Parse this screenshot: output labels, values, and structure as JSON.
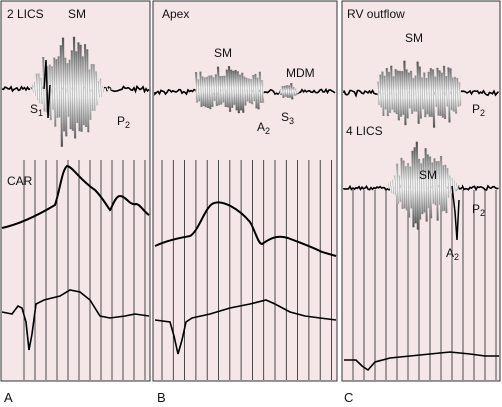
{
  "panels": [
    {
      "letter": "A",
      "title": "2 LICS",
      "labels": {
        "sm": "SM",
        "s1": "S",
        "s1_sub": "1",
        "p2": "P",
        "p2_sub": "2",
        "car": "CAR"
      }
    },
    {
      "letter": "B",
      "title": "Apex",
      "labels": {
        "sm": "SM",
        "mdm": "MDM",
        "a2": "A",
        "a2_sub": "2",
        "s3": "S",
        "s3_sub": "3"
      }
    },
    {
      "letter": "C",
      "title": "RV outflow",
      "labels": {
        "sm": "SM",
        "p2": "P",
        "p2_sub": "2",
        "lics4": "4 LICS",
        "sm2": "SM",
        "p2b": "P",
        "p2b_sub": "2",
        "a2": "A",
        "a2_sub": "2"
      }
    }
  ],
  "colors": {
    "panel_bg": "#f5e6e8",
    "border": "#333333",
    "trace": "#000000",
    "gridline": "#222222"
  }
}
